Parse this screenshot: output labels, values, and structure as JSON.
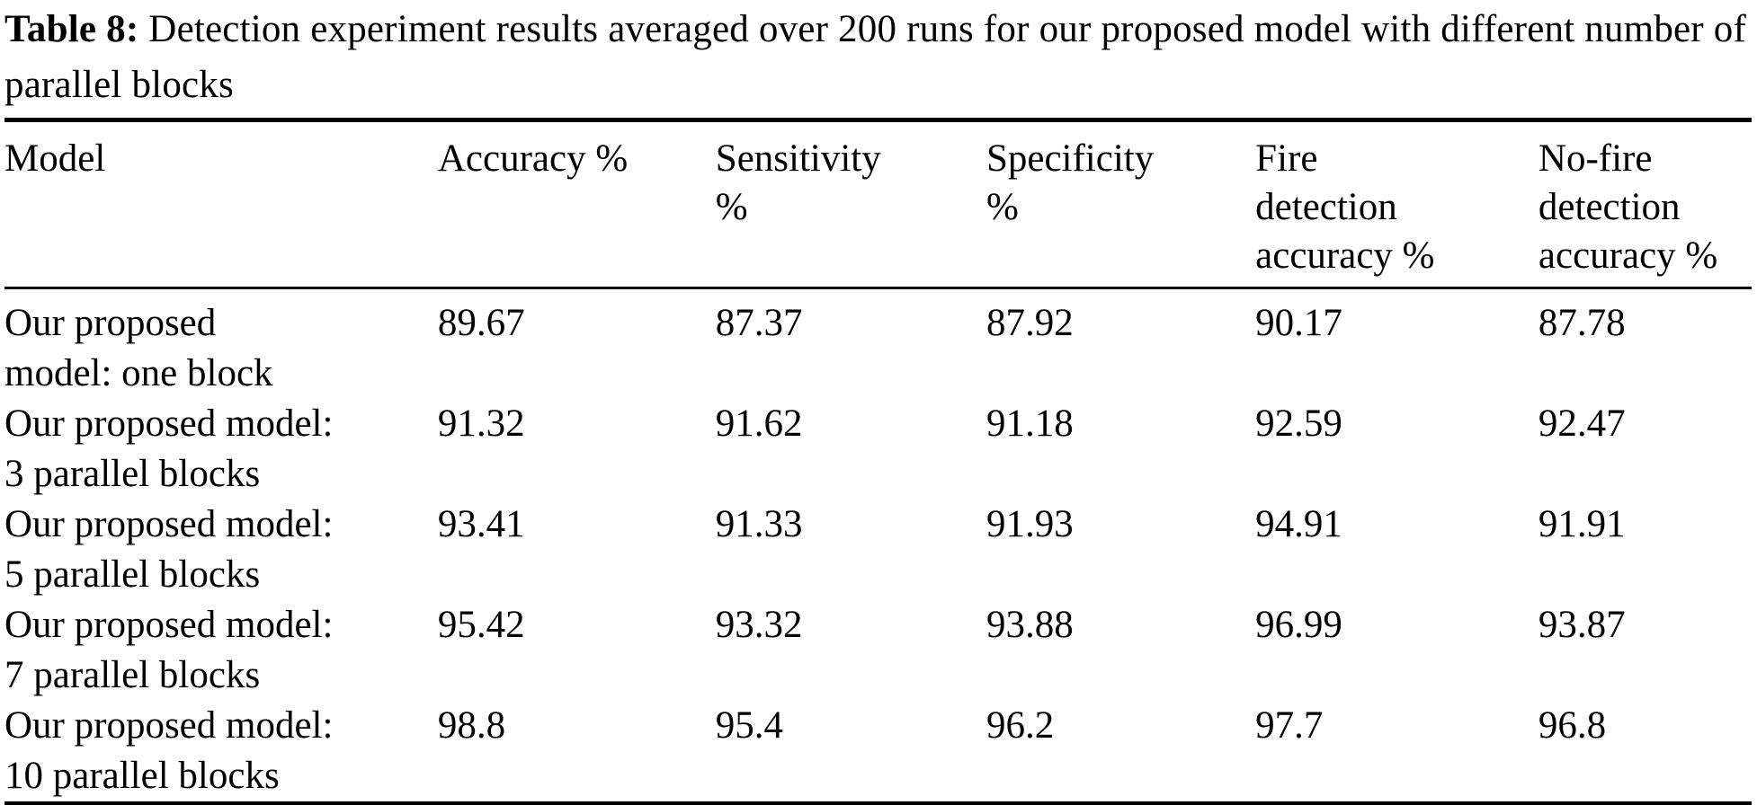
{
  "caption": {
    "label": "Table 8:",
    "text": " Detection experiment results averaged over 200 runs for our proposed model with different number of parallel blocks"
  },
  "table": {
    "headers": {
      "model": "Model",
      "accuracy": "Accuracy %",
      "sensitivity": "Sensitivity\n%",
      "specificity": "Specificity\n%",
      "fire_detection_accuracy": "Fire\ndetection\naccuracy %",
      "no_fire_detection_accuracy": "No-fire\ndetection\naccuracy %"
    },
    "rows": [
      {
        "model": "Our proposed\nmodel: one block",
        "accuracy": "89.67",
        "sensitivity": "87.37",
        "specificity": "87.92",
        "fire_detection_accuracy": "90.17",
        "no_fire_detection_accuracy": "87.78"
      },
      {
        "model": "Our proposed model:\n3 parallel blocks",
        "accuracy": "91.32",
        "sensitivity": "91.62",
        "specificity": "91.18",
        "fire_detection_accuracy": "92.59",
        "no_fire_detection_accuracy": "92.47"
      },
      {
        "model": "Our proposed model:\n5 parallel blocks",
        "accuracy": "93.41",
        "sensitivity": "91.33",
        "specificity": "91.93",
        "fire_detection_accuracy": "94.91",
        "no_fire_detection_accuracy": "91.91"
      },
      {
        "model": "Our proposed model:\n7 parallel blocks",
        "accuracy": "95.42",
        "sensitivity": "93.32",
        "specificity": "93.88",
        "fire_detection_accuracy": "96.99",
        "no_fire_detection_accuracy": "93.87"
      },
      {
        "model": "Our proposed model:\n10 parallel blocks",
        "accuracy": "98.8",
        "sensitivity": "95.4",
        "specificity": "96.2",
        "fire_detection_accuracy": "97.7",
        "no_fire_detection_accuracy": "96.8"
      }
    ]
  },
  "colors": {
    "text": "#000000",
    "background": "#ffffff",
    "rule": "#000000"
  }
}
